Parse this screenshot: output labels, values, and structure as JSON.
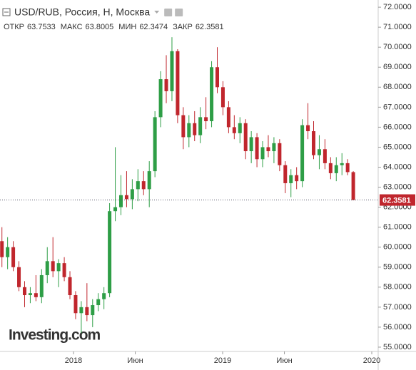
{
  "chart_data": {
    "type": "candlestick",
    "title": "USD/RUB, Россия, Н, Москва",
    "ohlc_labels": [
      "ОТКР",
      "МАКС",
      "МИН",
      "ЗАКР"
    ],
    "watermark": "Investing.com",
    "up_color": "#2e9e46",
    "down_color": "#c0262d",
    "x": [
      2017.52,
      2017.558,
      2017.596,
      2017.634,
      2017.672,
      2017.71,
      2017.748,
      2017.786,
      2017.824,
      2017.862,
      2017.9,
      2017.938,
      2017.976,
      2018.014,
      2018.052,
      2018.09,
      2018.128,
      2018.166,
      2018.204,
      2018.242,
      2018.28,
      2018.318,
      2018.356,
      2018.394,
      2018.432,
      2018.47,
      2018.508,
      2018.546,
      2018.584,
      2018.622,
      2018.66,
      2018.698,
      2018.736,
      2018.774,
      2018.812,
      2018.85,
      2018.888,
      2018.926,
      2018.964,
      2019.002,
      2019.04,
      2019.078,
      2019.116,
      2019.154,
      2019.192,
      2019.23,
      2019.268,
      2019.306,
      2019.344,
      2019.382,
      2019.42,
      2019.458,
      2019.496,
      2019.534,
      2019.572,
      2019.61,
      2019.648,
      2019.686,
      2019.724,
      2019.762,
      2019.8,
      2019.838,
      2019.876
    ],
    "open": [
      60.3,
      59.5,
      60.0,
      59.0,
      58.0,
      57.6,
      57.7,
      57.5,
      58.6,
      59.3,
      58.8,
      59.2,
      58.5,
      57.6,
      56.7,
      57.0,
      56.6,
      57.1,
      57.4,
      57.7,
      61.8,
      62.0,
      62.6,
      62.4,
      62.9,
      63.3,
      62.9,
      63.8,
      66.5,
      68.4,
      67.8,
      69.8,
      66.6,
      65.5,
      66.2,
      65.6,
      66.5,
      66.3,
      69.0,
      68.0,
      67.0,
      66.0,
      65.7,
      66.2,
      64.8,
      65.5,
      64.4,
      65.0,
      64.8,
      65.2,
      64.1,
      63.2,
      63.6,
      63.3,
      66.1,
      65.8,
      64.6,
      64.9,
      64.2,
      63.7,
      64.1,
      64.2,
      63.7533
    ],
    "high": [
      61.0,
      60.5,
      60.3,
      59.3,
      58.3,
      58.0,
      58.6,
      58.9,
      60.0,
      60.5,
      59.4,
      59.5,
      58.8,
      57.8,
      57.3,
      58.2,
      57.4,
      57.7,
      58.0,
      62.2,
      65.0,
      63.6,
      63.8,
      63.4,
      63.9,
      63.8,
      64.3,
      66.8,
      68.8,
      69.6,
      70.5,
      69.9,
      67.0,
      66.6,
      66.8,
      67.0,
      67.5,
      69.3,
      70.0,
      68.3,
      67.3,
      66.6,
      66.5,
      66.4,
      65.8,
      65.7,
      65.3,
      65.6,
      65.5,
      65.4,
      64.3,
      63.9,
      64.0,
      66.4,
      67.2,
      66.3,
      65.6,
      65.4,
      64.5,
      64.5,
      64.7,
      64.4,
      63.8005
    ],
    "low": [
      59.0,
      58.9,
      58.8,
      57.8,
      57.0,
      57.2,
      57.3,
      57.2,
      58.2,
      58.5,
      58.0,
      58.3,
      57.4,
      56.4,
      55.7,
      56.3,
      56.0,
      56.8,
      56.9,
      57.5,
      61.3,
      61.6,
      62.0,
      61.9,
      62.3,
      62.6,
      62.0,
      63.5,
      66.0,
      67.2,
      67.3,
      66.2,
      64.9,
      65.0,
      65.3,
      65.2,
      65.9,
      66.0,
      67.7,
      66.6,
      65.7,
      65.4,
      65.2,
      64.4,
      64.2,
      64.0,
      64.0,
      64.5,
      64.2,
      63.8,
      62.7,
      62.5,
      62.9,
      63.0,
      65.4,
      64.4,
      63.9,
      63.9,
      63.4,
      63.3,
      63.6,
      63.6,
      62.3474
    ],
    "close": [
      59.5,
      60.0,
      59.0,
      58.0,
      57.6,
      57.7,
      57.5,
      58.6,
      59.3,
      58.8,
      59.2,
      58.5,
      57.6,
      56.7,
      57.0,
      56.6,
      57.1,
      57.4,
      57.7,
      61.8,
      62.0,
      62.6,
      62.4,
      62.9,
      63.3,
      62.9,
      63.8,
      66.5,
      68.4,
      67.8,
      69.8,
      66.6,
      65.5,
      66.2,
      65.6,
      66.5,
      66.3,
      69.0,
      68.0,
      67.0,
      66.0,
      65.7,
      66.2,
      64.8,
      65.5,
      64.4,
      65.0,
      64.8,
      65.2,
      64.1,
      63.2,
      63.6,
      63.3,
      66.1,
      65.8,
      64.6,
      64.9,
      64.2,
      63.7,
      64.1,
      64.2,
      63.7533,
      62.3581
    ],
    "xlim": [
      2017.507,
      2020.043
    ],
    "xticks": [
      2018,
      {
        "value": 2018.414,
        "label": "Июн"
      },
      2019,
      {
        "value": 2019.414,
        "label": "Июн"
      },
      2020
    ],
    "ylim": [
      54.82,
      72.36
    ],
    "yticks": [
      {
        "value": 55,
        "label": "55.0000"
      },
      {
        "value": 56,
        "label": "56.0000"
      },
      {
        "value": 57,
        "label": "57.0000"
      },
      {
        "value": 58,
        "label": "58.0000"
      },
      {
        "value": 59,
        "label": "59.0000"
      },
      {
        "value": 60,
        "label": "60.0000"
      },
      {
        "value": 61,
        "label": "61.0000"
      },
      {
        "value": 62,
        "label": "62.0000"
      },
      {
        "value": 63,
        "label": "63.0000"
      },
      {
        "value": 64,
        "label": "64.0000"
      },
      {
        "value": 65,
        "label": "65.0000"
      },
      {
        "value": 66,
        "label": "66.0000"
      },
      {
        "value": 67,
        "label": "67.0000"
      },
      {
        "value": 68,
        "label": "68.0000"
      },
      {
        "value": 69,
        "label": "69.0000"
      },
      {
        "value": 70,
        "label": "70.0000"
      },
      {
        "value": 71,
        "label": "71.0000"
      },
      {
        "value": 72,
        "label": "72.0000"
      }
    ]
  }
}
